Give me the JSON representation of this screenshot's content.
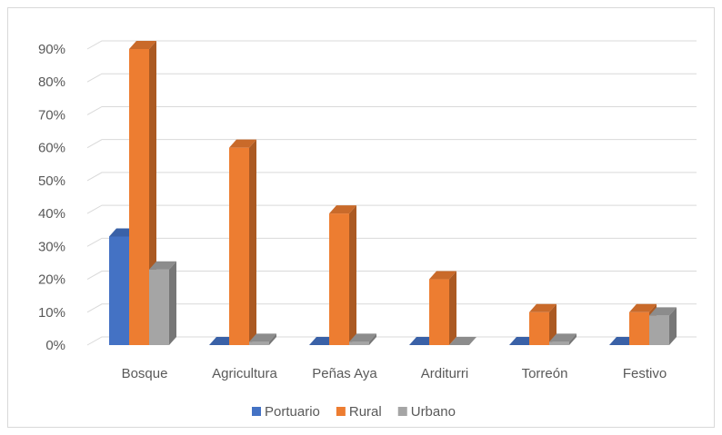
{
  "chart_data": {
    "type": "bar",
    "style": "3d-clustered-column",
    "categories": [
      "Bosque",
      "Agricultura",
      "Peñas Aya",
      "Arditurri",
      "Torreón",
      "Festivo"
    ],
    "series": [
      {
        "name": "Portuario",
        "color": "#4472C4",
        "values": [
          33,
          0,
          0,
          0,
          0,
          0
        ]
      },
      {
        "name": "Rural",
        "color": "#ED7D31",
        "values": [
          90,
          60,
          40,
          20,
          10,
          10
        ]
      },
      {
        "name": "Urbano",
        "color": "#A5A5A5",
        "values": [
          23,
          1,
          1,
          0,
          1,
          9
        ]
      }
    ],
    "y_unit": "%",
    "yticks": [
      "0%",
      "10%",
      "20%",
      "30%",
      "40%",
      "50%",
      "60%",
      "70%",
      "80%",
      "90%"
    ],
    "ylim": [
      0,
      90
    ],
    "grid": true,
    "legend_position": "bottom"
  }
}
